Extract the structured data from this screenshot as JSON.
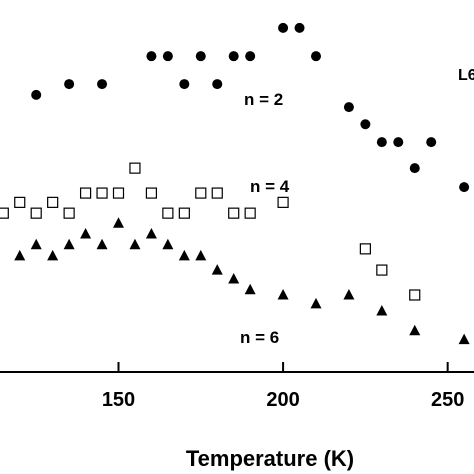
{
  "chart_data": {
    "type": "scatter",
    "xlabel": "Temperature (K)",
    "ylabel": "",
    "xlim": [
      114,
      258
    ],
    "ylim": [
      0,
      100
    ],
    "xticks": [
      150,
      200,
      250
    ],
    "xtick_labels": [
      "150",
      "200",
      "250"
    ],
    "grid": false,
    "corner_label": "L6",
    "series": [
      {
        "name": "n = 2",
        "marker": "filled-circle",
        "x": [
          125,
          135,
          145,
          160,
          165,
          170,
          175,
          180,
          185,
          190,
          200,
          205,
          210,
          220,
          225,
          230,
          235,
          240,
          245,
          255
        ],
        "y": [
          74.5,
          77.4,
          77.4,
          84.9,
          84.9,
          77.4,
          84.9,
          77.4,
          84.9,
          84.9,
          92.5,
          92.5,
          84.9,
          71.2,
          66.6,
          61.8,
          61.8,
          54.8,
          61.8,
          49.7
        ]
      },
      {
        "name": "n = 4",
        "marker": "open-square",
        "x": [
          115,
          120,
          125,
          130,
          135,
          140,
          145,
          150,
          155,
          160,
          165,
          170,
          175,
          180,
          185,
          190,
          200,
          225,
          230,
          240
        ],
        "y": [
          42.7,
          45.6,
          42.7,
          45.6,
          42.7,
          48.1,
          48.1,
          48.1,
          54.8,
          48.1,
          42.7,
          42.7,
          48.1,
          48.1,
          42.7,
          42.7,
          45.6,
          33.1,
          27.4,
          20.7
        ]
      },
      {
        "name": "n = 6",
        "marker": "filled-triangle",
        "x": [
          120,
          125,
          130,
          135,
          140,
          145,
          150,
          155,
          160,
          165,
          170,
          175,
          180,
          185,
          190,
          200,
          210,
          220,
          230,
          240,
          255
        ],
        "y": [
          31.2,
          34.2,
          31.2,
          34.2,
          37.1,
          34.2,
          40.0,
          34.2,
          37.1,
          34.2,
          31.2,
          31.2,
          27.4,
          25.0,
          22.1,
          20.7,
          18.3,
          20.7,
          16.4,
          11.1,
          8.7
        ]
      }
    ]
  }
}
